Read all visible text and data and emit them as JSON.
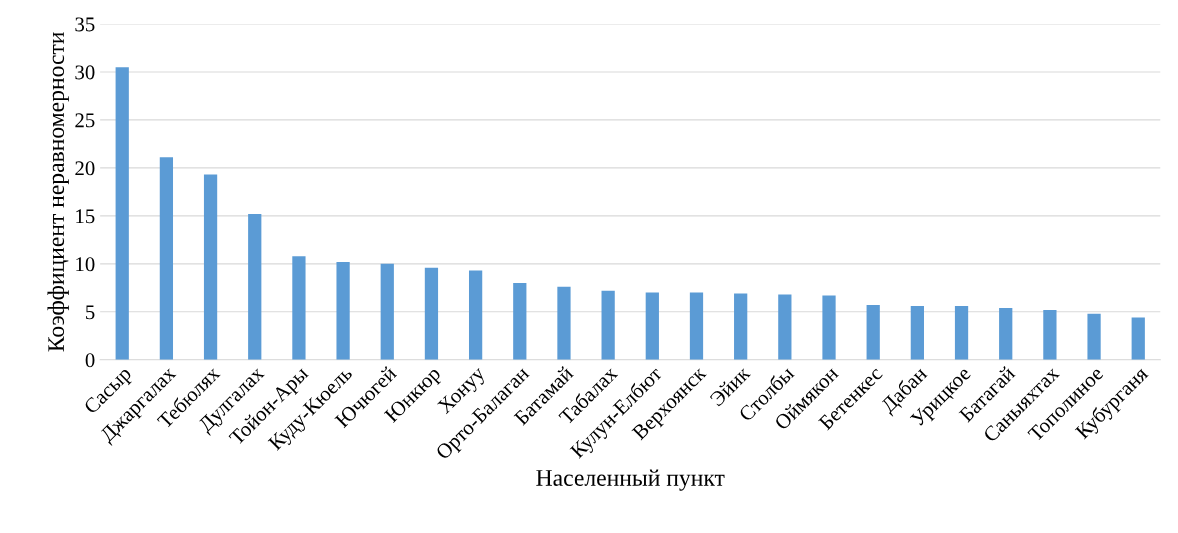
{
  "chart_data": {
    "type": "bar",
    "xlabel": "Населенный пункт",
    "ylabel": "Коэффициент неравномерности",
    "categories": [
      "Сасыр",
      "Джаргалах",
      "Тебюлях",
      "Дулгалах",
      "Тойон-Ары",
      "Куду-Кюель",
      "Ючюгей",
      "Юнкюр",
      "Хонуу",
      "Орто-Балаган",
      "Батамай",
      "Табалах",
      "Кулун-Елбют",
      "Верхоянск",
      "Эйик",
      "Столбы",
      "Оймякон",
      "Бетенкес",
      "Дабан",
      "Урицкое",
      "Батагай",
      "Саныяхтах",
      "Тополиное",
      "Кубурганя"
    ],
    "values": [
      30.5,
      21.1,
      19.3,
      15.2,
      10.8,
      10.2,
      10.0,
      9.6,
      9.3,
      8.0,
      7.6,
      7.2,
      7.0,
      7.0,
      6.9,
      6.8,
      6.7,
      5.7,
      5.6,
      5.6,
      5.4,
      5.2,
      4.8,
      4.4
    ],
    "color": "#5b9bd5",
    "ylim": [
      0,
      35
    ],
    "yticks": [
      0,
      5,
      10,
      15,
      20,
      25,
      30,
      35
    ],
    "grid": "y"
  }
}
